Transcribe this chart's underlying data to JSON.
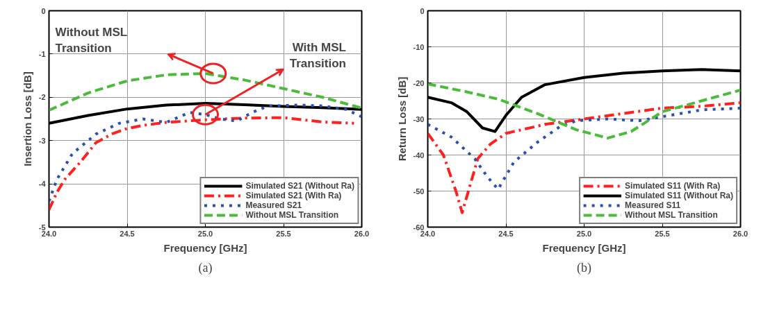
{
  "chart_data": [
    {
      "type": "line",
      "xlabel": "Frequency [GHz]",
      "ylabel": "Insertion Loss [dB]",
      "xlim": [
        24.0,
        26.0
      ],
      "ylim": [
        -5,
        0
      ],
      "xticks": [
        {
          "value": 24.0,
          "label": "24.0"
        },
        {
          "value": 24.5,
          "label": "24.5"
        },
        {
          "value": 25.0,
          "label": "25.0"
        },
        {
          "value": 25.5,
          "label": "25.5"
        },
        {
          "value": 26.0,
          "label": "26.0"
        }
      ],
      "yticks": [
        -5,
        -4,
        -3,
        -2,
        -1,
        0
      ],
      "grid": true,
      "legend": "bottom right",
      "series": [
        {
          "name": "Simulated S21 (Without Ra)",
          "color": "#000000",
          "line_style": "solid",
          "x": [
            24.0,
            24.25,
            24.5,
            24.75,
            25.0,
            25.25,
            25.5,
            25.75,
            26.0
          ],
          "values": [
            -2.6,
            -2.42,
            -2.27,
            -2.18,
            -2.14,
            -2.17,
            -2.21,
            -2.24,
            -2.28
          ]
        },
        {
          "name": "Simulated S21 (With Ra)",
          "color": "#ff2020",
          "line_style": "dashdot",
          "x": [
            24.0,
            24.05,
            24.1,
            24.2,
            24.3,
            24.4,
            24.5,
            24.6,
            24.75,
            25.0,
            25.25,
            25.5,
            25.75,
            25.95
          ],
          "values": [
            -4.6,
            -4.2,
            -3.9,
            -3.5,
            -3.05,
            -2.85,
            -2.72,
            -2.65,
            -2.58,
            -2.52,
            -2.48,
            -2.47,
            -2.57,
            -2.6
          ]
        },
        {
          "name": "Measured S21",
          "color": "#2a4fb0",
          "line_style": "dotted",
          "x": [
            24.0,
            24.05,
            24.15,
            24.3,
            24.45,
            24.6,
            24.75,
            24.9,
            25.0,
            25.1,
            25.2,
            25.3,
            25.4,
            25.6,
            25.75,
            25.9,
            26.0
          ],
          "values": [
            -4.4,
            -3.9,
            -3.3,
            -2.85,
            -2.6,
            -2.5,
            -2.58,
            -2.35,
            -2.4,
            -2.5,
            -2.55,
            -2.35,
            -2.2,
            -2.18,
            -2.2,
            -2.28,
            -2.45
          ]
        },
        {
          "name": "Without MSL Transition",
          "color": "#4cbb3c",
          "line_style": "dashed",
          "x": [
            24.0,
            24.25,
            24.5,
            24.75,
            25.0,
            25.25,
            25.5,
            25.75,
            26.0
          ],
          "values": [
            -2.3,
            -1.9,
            -1.62,
            -1.48,
            -1.45,
            -1.6,
            -1.8,
            -2.0,
            -2.25
          ]
        }
      ],
      "annotations": [
        "Without MSL Transition",
        "With MSL Transition",
        "(a)"
      ]
    },
    {
      "type": "line",
      "xlabel": "Frequency [GHz]",
      "ylabel": "Return Loss [dB]",
      "xlim": [
        24.0,
        26.0
      ],
      "ylim": [
        -60,
        0
      ],
      "xticks": [
        {
          "value": 24.0,
          "label": "24.0"
        },
        {
          "value": 24.5,
          "label": "24.5"
        },
        {
          "value": 25.0,
          "label": "25.0"
        },
        {
          "value": 25.5,
          "label": "25.5"
        },
        {
          "value": 26.0,
          "label": "26.0"
        }
      ],
      "yticks": [
        -60,
        -50,
        -40,
        -30,
        -20,
        -10,
        0
      ],
      "grid": true,
      "legend": "bottom right",
      "series": [
        {
          "name": "Simulated S11 (With Ra)",
          "color": "#ff2020",
          "line_style": "dashdot",
          "x": [
            24.0,
            24.1,
            24.18,
            24.22,
            24.26,
            24.32,
            24.4,
            24.5,
            24.75,
            25.0,
            25.25,
            25.5,
            25.75,
            26.0
          ],
          "values": [
            -34,
            -40,
            -50,
            -56,
            -50,
            -41,
            -37,
            -34,
            -31.5,
            -30,
            -28.5,
            -27,
            -26.5,
            -25.5
          ]
        },
        {
          "name": "Simulated S11 (Without Ra)",
          "color": "#000000",
          "line_style": "solid",
          "x": [
            24.0,
            24.15,
            24.25,
            24.35,
            24.43,
            24.5,
            24.6,
            24.75,
            25.0,
            25.25,
            25.5,
            25.75,
            26.0
          ],
          "values": [
            -24,
            -25.5,
            -28,
            -32.5,
            -33.5,
            -29,
            -24,
            -20.5,
            -18.5,
            -17.3,
            -16.7,
            -16.3,
            -16.7
          ]
        },
        {
          "name": "Measured S11",
          "color": "#2a4fb0",
          "line_style": "dotted",
          "x": [
            24.0,
            24.15,
            24.3,
            24.38,
            24.45,
            24.55,
            24.7,
            24.85,
            24.95,
            25.15,
            25.35,
            25.55,
            25.75,
            26.0
          ],
          "values": [
            -31.5,
            -35,
            -41,
            -46,
            -49.5,
            -42,
            -36.5,
            -32,
            -30.5,
            -30,
            -30.5,
            -29,
            -27.5,
            -27
          ]
        },
        {
          "name": "Without MSL Transition",
          "color": "#4cbb3c",
          "line_style": "dashed",
          "x": [
            24.0,
            24.25,
            24.45,
            24.7,
            24.95,
            25.15,
            25.3,
            25.5,
            25.75,
            26.0
          ],
          "values": [
            -20.3,
            -22.5,
            -24.5,
            -28.5,
            -33,
            -35.3,
            -33.5,
            -28,
            -25,
            -22
          ]
        }
      ],
      "annotations": [
        "(b)"
      ]
    }
  ]
}
